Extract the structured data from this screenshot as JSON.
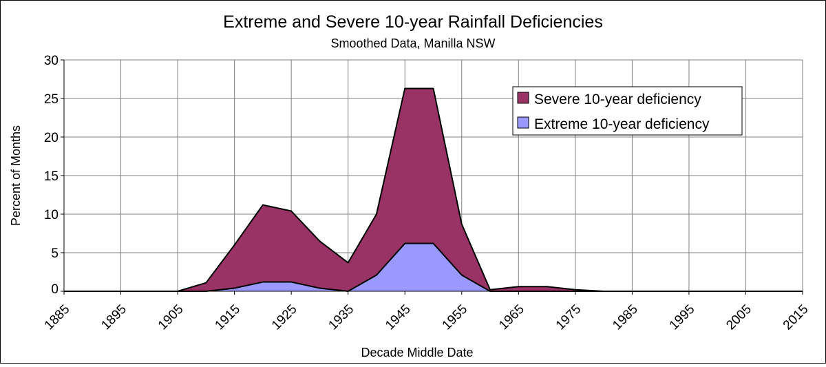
{
  "chart_data": {
    "type": "area",
    "title": "Extreme and Severe 10-year Rainfall Deficiencies",
    "subtitle": "Smoothed Data, Manilla NSW",
    "xlabel": "Decade Middle Date",
    "ylabel": "Percent of Months",
    "xlim": [
      1885,
      2015
    ],
    "ylim": [
      0,
      30
    ],
    "xticks": [
      1885,
      1895,
      1905,
      1915,
      1925,
      1935,
      1945,
      1955,
      1965,
      1975,
      1985,
      1995,
      2005,
      2015
    ],
    "yticks": [
      0,
      5,
      10,
      15,
      20,
      25,
      30
    ],
    "grid": true,
    "legend_position": "top-right",
    "x": [
      1885,
      1890,
      1895,
      1900,
      1905,
      1910,
      1915,
      1920,
      1925,
      1930,
      1935,
      1940,
      1945,
      1950,
      1955,
      1960,
      1965,
      1970,
      1975,
      1980,
      1985,
      1990,
      1995,
      2000,
      2005,
      2010,
      2015
    ],
    "series": [
      {
        "name": "Severe 10-year deficiency",
        "color": "#993366",
        "values": [
          0,
          0,
          0,
          0,
          0,
          1.1,
          6.0,
          11.2,
          10.4,
          6.5,
          3.7,
          10.0,
          26.3,
          26.3,
          8.7,
          0.2,
          0.6,
          0.6,
          0.2,
          0,
          0,
          0,
          0,
          0,
          0,
          0,
          0
        ]
      },
      {
        "name": "Extreme 10-year deficiency",
        "color": "#9999FF",
        "values": [
          0,
          0,
          0,
          0,
          0,
          0,
          0.4,
          1.2,
          1.2,
          0.4,
          0,
          2.1,
          6.2,
          6.2,
          2.1,
          0,
          0,
          0,
          0,
          0,
          0,
          0,
          0,
          0,
          0,
          0,
          0
        ]
      }
    ]
  }
}
